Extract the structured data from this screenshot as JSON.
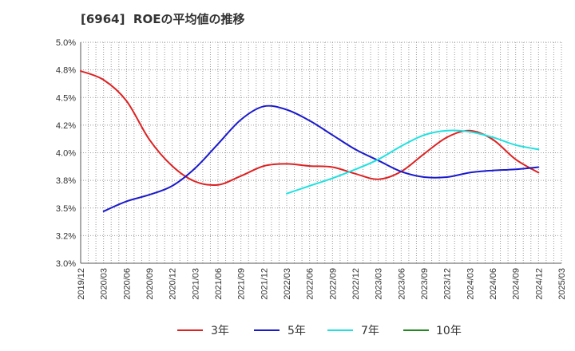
{
  "colors": {
    "background": "#ffffff",
    "grid": "#9a9a9a",
    "axis": "#555555",
    "text": "#333333"
  },
  "chart_data": {
    "type": "line",
    "title": "[6964]  ROEの平均値の推移",
    "xlabel": "",
    "ylabel": "",
    "categories": [
      "2019/12",
      "2020/03",
      "2020/06",
      "2020/09",
      "2020/12",
      "2021/03",
      "2021/06",
      "2021/09",
      "2021/12",
      "2022/03",
      "2022/06",
      "2022/09",
      "2022/12",
      "2023/03",
      "2023/06",
      "2023/09",
      "2023/12",
      "2024/03",
      "2024/06",
      "2024/09",
      "2024/12",
      "2025/03"
    ],
    "ylim": [
      3.0,
      5.0
    ],
    "y_ticks": [
      3.0,
      3.25,
      3.5,
      3.75,
      4.0,
      4.25,
      4.5,
      4.75,
      5.0
    ],
    "y_tick_labels": [
      "3.0%",
      "3.2%",
      "3.5%",
      "3.8%",
      "4.0%",
      "4.2%",
      "4.5%",
      "4.8%",
      "5.0%"
    ],
    "grid": true,
    "legend_position": "bottom",
    "series": [
      {
        "name": "3年",
        "color": "#dd2222",
        "values": [
          4.74,
          4.66,
          4.47,
          4.12,
          3.88,
          3.74,
          3.71,
          3.79,
          3.88,
          3.9,
          3.88,
          3.87,
          3.81,
          3.76,
          3.83,
          3.99,
          4.14,
          4.2,
          4.12,
          3.94,
          3.82,
          null
        ]
      },
      {
        "name": "5年",
        "color": "#1a1acc",
        "values": [
          null,
          3.47,
          3.56,
          3.62,
          3.7,
          3.86,
          4.08,
          4.3,
          4.42,
          4.39,
          4.29,
          4.16,
          4.03,
          3.93,
          3.83,
          3.78,
          3.78,
          3.82,
          3.84,
          3.85,
          3.87,
          null
        ]
      },
      {
        "name": "7年",
        "color": "#22e0e0",
        "values": [
          null,
          null,
          null,
          null,
          null,
          null,
          null,
          null,
          null,
          3.63,
          3.7,
          3.77,
          3.85,
          3.94,
          4.06,
          4.16,
          4.2,
          4.19,
          4.14,
          4.07,
          4.03,
          null
        ]
      },
      {
        "name": "10年",
        "color": "#228822",
        "values": [
          null,
          null,
          null,
          null,
          null,
          null,
          null,
          null,
          null,
          null,
          null,
          null,
          null,
          null,
          null,
          null,
          null,
          null,
          null,
          null,
          null,
          null
        ]
      }
    ]
  }
}
